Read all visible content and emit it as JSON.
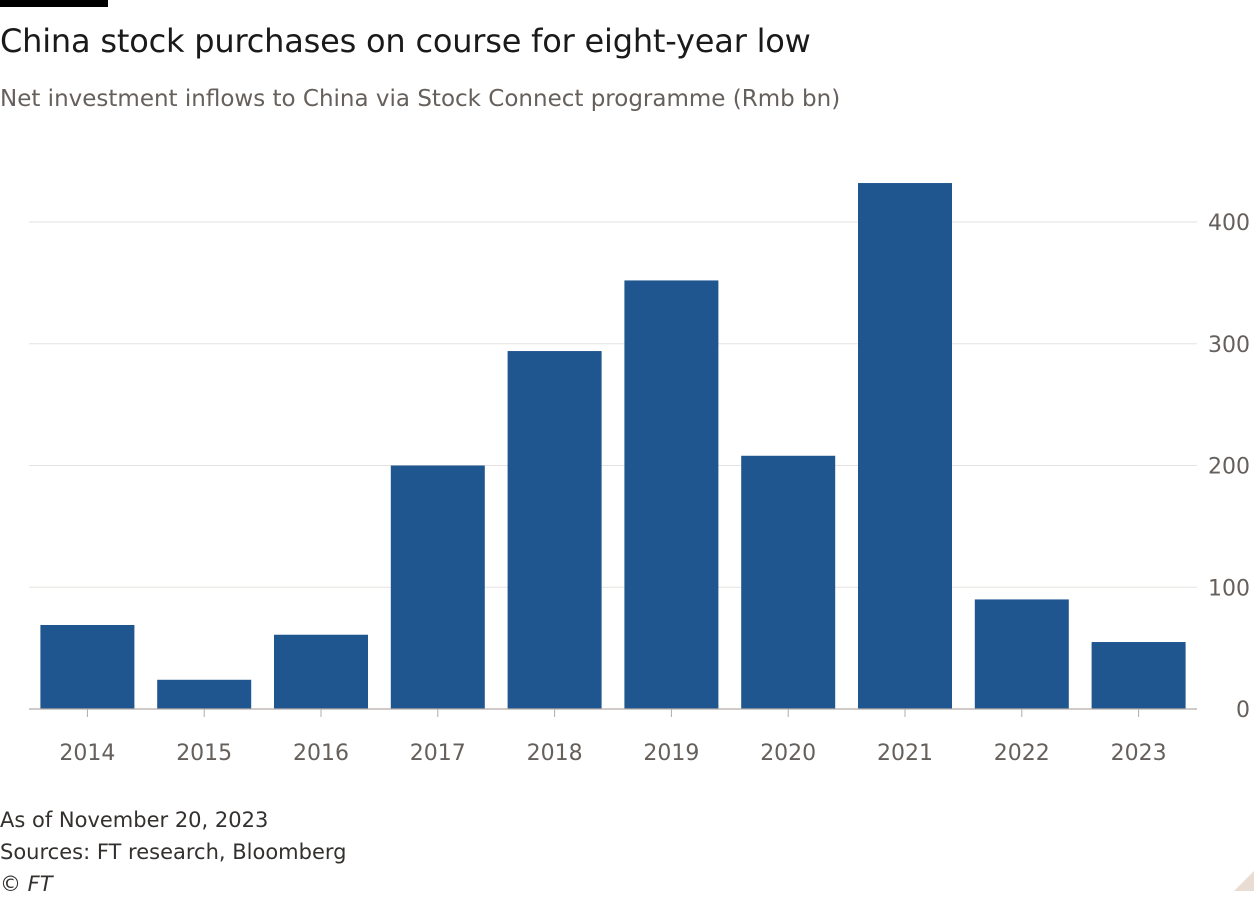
{
  "chart_data": {
    "type": "bar",
    "title": "China stock purchases on course for eight-year low",
    "subtitle": "Net investment inflows to China via Stock Connect programme (Rmb bn)",
    "categories": [
      "2014",
      "2015",
      "2016",
      "2017",
      "2018",
      "2019",
      "2020",
      "2021",
      "2022",
      "2023"
    ],
    "values": [
      69,
      24,
      61,
      200,
      294,
      352,
      208,
      432,
      90,
      55
    ],
    "ylim": [
      0,
      450
    ],
    "yticks": [
      0,
      100,
      200,
      300,
      400
    ],
    "ytick_labels": [
      "0",
      "100",
      "200",
      "300",
      "400"
    ],
    "ylabel": "",
    "xlabel": "",
    "grid": true,
    "y_axis_side": "right",
    "bar_color": "#1f5690"
  },
  "footer": {
    "note": "As of November 20, 2023",
    "source": "Sources: FT research, Bloomberg",
    "copyright": "© FT"
  }
}
